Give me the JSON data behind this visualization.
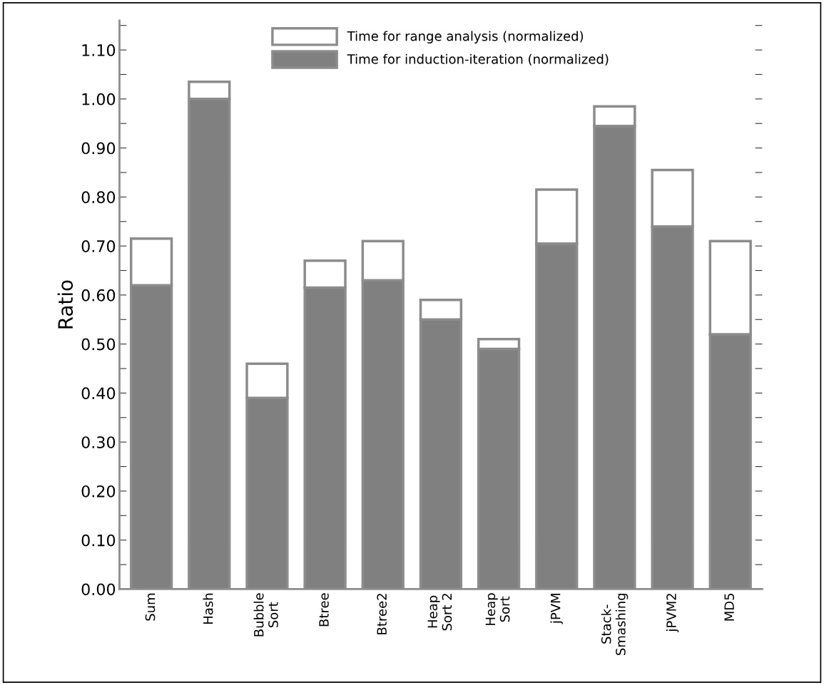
{
  "chart_data": {
    "type": "bar",
    "stacked": true,
    "ylabel": "Ratio",
    "categories": [
      "Sum",
      "Hash",
      "Bubble\nSort",
      "Btree",
      "Btree2",
      "Heap\nSort 2",
      "Heap\nSort",
      "jPVM",
      "Stack-\nSmashing",
      "jPVM2",
      "MD5"
    ],
    "series": [
      {
        "name": "Time for induction-iteration (normalized)",
        "color": "#808080",
        "values": [
          0.62,
          1.0,
          0.39,
          0.615,
          0.63,
          0.55,
          0.49,
          0.705,
          0.945,
          0.74,
          0.52
        ]
      },
      {
        "name": "Time for range analysis (normalized)",
        "color": "#ffffff",
        "values": [
          0.095,
          0.035,
          0.07,
          0.055,
          0.08,
          0.04,
          0.02,
          0.11,
          0.04,
          0.115,
          0.19
        ]
      }
    ],
    "ylim": [
      0,
      1.16
    ],
    "yticks": [
      {
        "value": 0,
        "label": "0.00"
      },
      {
        "value": 0.05,
        "label": null
      },
      {
        "value": 0.1,
        "label": "0.10"
      },
      {
        "value": 0.15,
        "label": null
      },
      {
        "value": 0.2,
        "label": "0.20"
      },
      {
        "value": 0.25,
        "label": null
      },
      {
        "value": 0.3,
        "label": "0.30"
      },
      {
        "value": 0.35,
        "label": null
      },
      {
        "value": 0.4,
        "label": "0.40"
      },
      {
        "value": 0.45,
        "label": null
      },
      {
        "value": 0.5,
        "label": "0.50"
      },
      {
        "value": 0.55,
        "label": null
      },
      {
        "value": 0.6,
        "label": "0.60"
      },
      {
        "value": 0.65,
        "label": null
      },
      {
        "value": 0.7,
        "label": "0.70"
      },
      {
        "value": 0.75,
        "label": null
      },
      {
        "value": 0.8,
        "label": "0.80"
      },
      {
        "value": 0.85,
        "label": null
      },
      {
        "value": 0.9,
        "label": "0.90"
      },
      {
        "value": 0.95,
        "label": null
      },
      {
        "value": 1.0,
        "label": "1.00"
      },
      {
        "value": 1.05,
        "label": null
      },
      {
        "value": 1.1,
        "label": "1.10"
      },
      {
        "value": 1.15,
        "label": null
      }
    ],
    "grid": false,
    "legend": "top"
  }
}
